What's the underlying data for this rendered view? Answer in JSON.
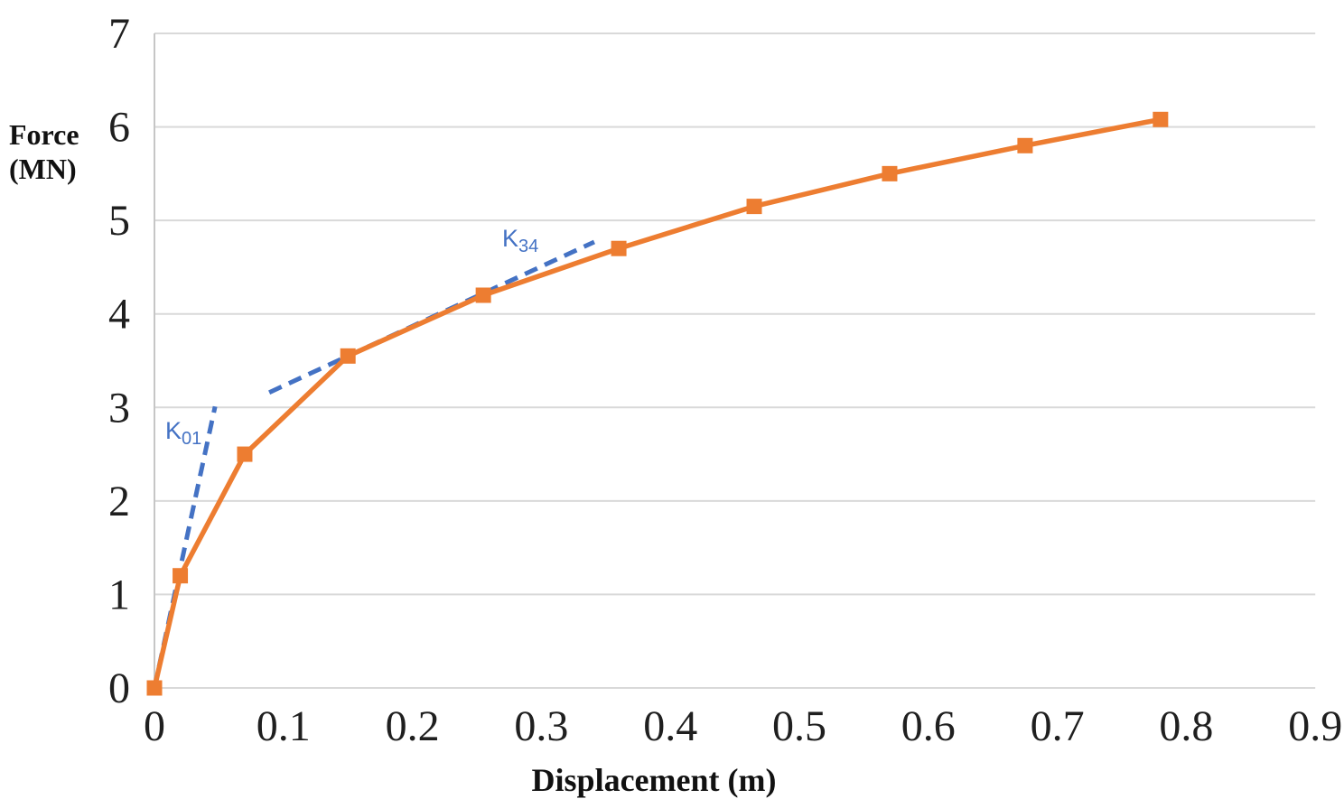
{
  "chart_data": {
    "type": "line",
    "xlabel": "Displacement (m)",
    "ylabel_lines": [
      "Force",
      "(MN)"
    ],
    "xlim": [
      0,
      0.9
    ],
    "ylim": [
      0,
      7
    ],
    "xticks": [
      0,
      0.1,
      0.2,
      0.3,
      0.4,
      0.5,
      0.6,
      0.7,
      0.8,
      0.9
    ],
    "yticks": [
      0,
      1,
      2,
      3,
      4,
      5,
      6,
      7
    ],
    "grid": "horizontal-only",
    "legend": "none",
    "series": [
      {
        "name": "force-displacement-curve",
        "color": "#ED7D31",
        "marker": "square",
        "line_style": "solid",
        "x": [
          0,
          0.02,
          0.07,
          0.15,
          0.255,
          0.36,
          0.465,
          0.57,
          0.675,
          0.78
        ],
        "y": [
          0,
          1.2,
          2.5,
          3.55,
          4.2,
          4.7,
          5.15,
          5.5,
          5.8,
          6.08
        ]
      }
    ],
    "tangents": [
      {
        "id": "k01",
        "label_base": "K",
        "label_sub": "01",
        "color": "#4472C4",
        "line_style": "dashed",
        "x": [
          0,
          0.047
        ],
        "y": [
          0,
          3.01
        ]
      },
      {
        "id": "k34",
        "label_base": "K",
        "label_sub": "34",
        "color": "#4472C4",
        "line_style": "dashed",
        "x": [
          0.089,
          0.341
        ],
        "y": [
          3.16,
          4.77
        ]
      }
    ],
    "colors": {
      "gridline": "#D9D9D9",
      "axis": "#C6C6C6",
      "tick_text": "#1f1f1f",
      "series": "#ED7D31",
      "tangent": "#4472C4"
    }
  }
}
